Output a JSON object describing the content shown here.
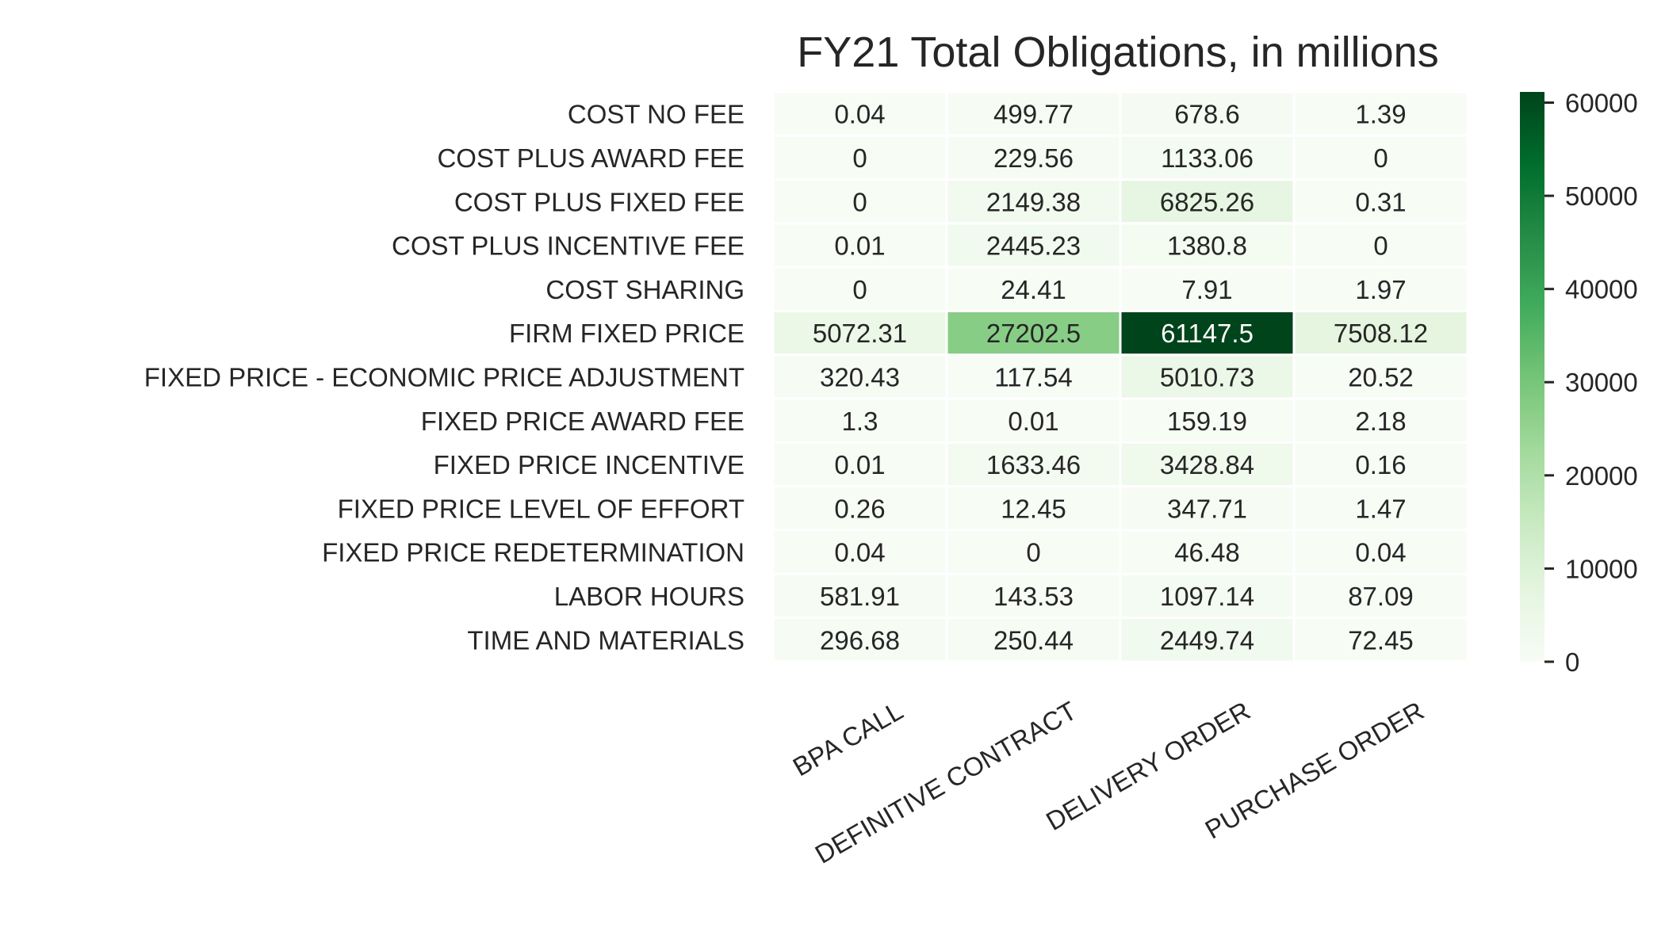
{
  "chart_data": {
    "type": "heatmap",
    "title": "FY21 Total Obligations, in millions",
    "xlabel": "",
    "ylabel": "",
    "columns": [
      "BPA CALL",
      "DEFINITIVE CONTRACT",
      "DELIVERY ORDER",
      "PURCHASE ORDER"
    ],
    "rows": [
      "COST NO FEE",
      "COST PLUS AWARD FEE",
      "COST PLUS FIXED FEE",
      "COST PLUS INCENTIVE FEE",
      "COST SHARING",
      "FIRM FIXED PRICE",
      "FIXED PRICE - ECONOMIC PRICE ADJUSTMENT",
      "FIXED PRICE AWARD FEE",
      "FIXED PRICE INCENTIVE",
      "FIXED PRICE LEVEL OF EFFORT",
      "FIXED PRICE REDETERMINATION",
      "LABOR HOURS",
      "TIME AND MATERIALS"
    ],
    "values": [
      [
        "0.04",
        "499.77",
        "678.6",
        "1.39"
      ],
      [
        "0",
        "229.56",
        "1133.06",
        "0"
      ],
      [
        "0",
        "2149.38",
        "6825.26",
        "0.31"
      ],
      [
        "0.01",
        "2445.23",
        "1380.8",
        "0"
      ],
      [
        "0",
        "24.41",
        "7.91",
        "1.97"
      ],
      [
        "5072.31",
        "27202.5",
        "61147.5",
        "7508.12"
      ],
      [
        "320.43",
        "117.54",
        "5010.73",
        "20.52"
      ],
      [
        "1.3",
        "0.01",
        "159.19",
        "2.18"
      ],
      [
        "0.01",
        "1633.46",
        "3428.84",
        "0.16"
      ],
      [
        "0.26",
        "12.45",
        "347.71",
        "1.47"
      ],
      [
        "0.04",
        "0",
        "46.48",
        "0.04"
      ],
      [
        "581.91",
        "143.53",
        "1097.14",
        "87.09"
      ],
      [
        "296.68",
        "250.44",
        "2449.74",
        "72.45"
      ]
    ],
    "colorbar": {
      "colormap": "Greens",
      "vmin": 0,
      "vmax": 61147.5,
      "ticks": [
        "0",
        "10000",
        "20000",
        "30000",
        "40000",
        "50000",
        "60000"
      ],
      "low_color": "#f7fcf5",
      "high_color": "#00441b"
    },
    "cell_separator_color": "#ffffff",
    "annotation_light_text_color": "#ffffff",
    "annotation_dark_text_color": "#262626"
  }
}
